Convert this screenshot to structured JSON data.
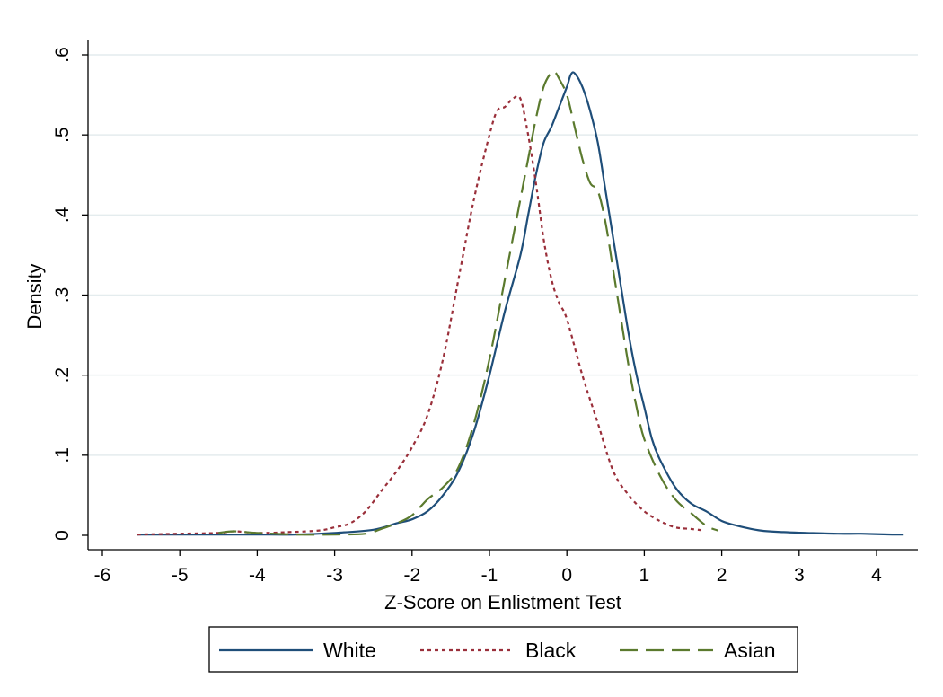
{
  "chart_data": {
    "type": "line",
    "title": "",
    "xlabel": "Z-Score on Enlistment Test",
    "ylabel": "Density",
    "xlim": [
      -6,
      4.5
    ],
    "ylim": [
      0,
      0.6
    ],
    "x_ticks": [
      -6,
      -5,
      -4,
      -3,
      -2,
      -1,
      0,
      1,
      2,
      3,
      4
    ],
    "x_tick_labels": [
      "-6",
      "-5",
      "-4",
      "-3",
      "-2",
      "-1",
      "0",
      "1",
      "2",
      "3",
      "4"
    ],
    "y_ticks": [
      0,
      0.1,
      0.2,
      0.3,
      0.4,
      0.5,
      0.6
    ],
    "y_tick_labels": [
      "0",
      ".1",
      ".2",
      ".3",
      ".4",
      ".5",
      ".6"
    ],
    "grid": "horizontal",
    "legend_position": "bottom",
    "series": [
      {
        "name": "White",
        "color": "#1f4e79",
        "dash": "solid",
        "points": [
          [
            -5.55,
            0.001
          ],
          [
            -5.0,
            0.001
          ],
          [
            -4.5,
            0.001
          ],
          [
            -4.0,
            0.001
          ],
          [
            -3.5,
            0.001
          ],
          [
            -3.0,
            0.003
          ],
          [
            -2.5,
            0.007
          ],
          [
            -2.2,
            0.015
          ],
          [
            -2.0,
            0.02
          ],
          [
            -1.8,
            0.03
          ],
          [
            -1.6,
            0.05
          ],
          [
            -1.4,
            0.08
          ],
          [
            -1.2,
            0.13
          ],
          [
            -1.0,
            0.2
          ],
          [
            -0.8,
            0.28
          ],
          [
            -0.6,
            0.35
          ],
          [
            -0.5,
            0.4
          ],
          [
            -0.4,
            0.45
          ],
          [
            -0.3,
            0.49
          ],
          [
            -0.2,
            0.51
          ],
          [
            -0.1,
            0.535
          ],
          [
            0.0,
            0.56
          ],
          [
            0.05,
            0.575
          ],
          [
            0.1,
            0.577
          ],
          [
            0.2,
            0.56
          ],
          [
            0.3,
            0.53
          ],
          [
            0.4,
            0.49
          ],
          [
            0.5,
            0.43
          ],
          [
            0.6,
            0.37
          ],
          [
            0.7,
            0.31
          ],
          [
            0.8,
            0.25
          ],
          [
            0.9,
            0.2
          ],
          [
            1.0,
            0.16
          ],
          [
            1.1,
            0.12
          ],
          [
            1.2,
            0.095
          ],
          [
            1.4,
            0.06
          ],
          [
            1.6,
            0.04
          ],
          [
            1.8,
            0.03
          ],
          [
            2.0,
            0.018
          ],
          [
            2.2,
            0.012
          ],
          [
            2.5,
            0.006
          ],
          [
            2.8,
            0.004
          ],
          [
            3.1,
            0.003
          ],
          [
            3.5,
            0.002
          ],
          [
            3.8,
            0.002
          ],
          [
            4.2,
            0.001
          ],
          [
            4.35,
            0.001
          ]
        ]
      },
      {
        "name": "Black",
        "color": "#9a2f3a",
        "dash": "dotted",
        "points": [
          [
            -5.55,
            0.001
          ],
          [
            -5.0,
            0.002
          ],
          [
            -4.5,
            0.003
          ],
          [
            -4.3,
            0.005
          ],
          [
            -4.0,
            0.003
          ],
          [
            -3.6,
            0.004
          ],
          [
            -3.2,
            0.006
          ],
          [
            -3.0,
            0.01
          ],
          [
            -2.8,
            0.015
          ],
          [
            -2.6,
            0.03
          ],
          [
            -2.4,
            0.055
          ],
          [
            -2.2,
            0.08
          ],
          [
            -2.0,
            0.11
          ],
          [
            -1.8,
            0.15
          ],
          [
            -1.6,
            0.22
          ],
          [
            -1.4,
            0.32
          ],
          [
            -1.2,
            0.42
          ],
          [
            -1.0,
            0.5
          ],
          [
            -0.9,
            0.53
          ],
          [
            -0.8,
            0.535
          ],
          [
            -0.7,
            0.545
          ],
          [
            -0.6,
            0.545
          ],
          [
            -0.5,
            0.5
          ],
          [
            -0.4,
            0.44
          ],
          [
            -0.3,
            0.37
          ],
          [
            -0.2,
            0.32
          ],
          [
            -0.1,
            0.29
          ],
          [
            0.0,
            0.27
          ],
          [
            0.2,
            0.2
          ],
          [
            0.4,
            0.14
          ],
          [
            0.6,
            0.08
          ],
          [
            0.8,
            0.05
          ],
          [
            1.0,
            0.03
          ],
          [
            1.2,
            0.018
          ],
          [
            1.4,
            0.01
          ],
          [
            1.6,
            0.008
          ],
          [
            1.78,
            0.006
          ]
        ]
      },
      {
        "name": "Asian",
        "color": "#5b7a2e",
        "dash": "dashed",
        "points": [
          [
            -4.5,
            0.003
          ],
          [
            -4.3,
            0.005
          ],
          [
            -4.0,
            0.003
          ],
          [
            -3.5,
            0.001
          ],
          [
            -3.0,
            0.001
          ],
          [
            -2.6,
            0.002
          ],
          [
            -2.4,
            0.008
          ],
          [
            -2.2,
            0.015
          ],
          [
            -2.0,
            0.025
          ],
          [
            -1.8,
            0.045
          ],
          [
            -1.6,
            0.06
          ],
          [
            -1.4,
            0.085
          ],
          [
            -1.2,
            0.14
          ],
          [
            -1.0,
            0.22
          ],
          [
            -0.8,
            0.32
          ],
          [
            -0.6,
            0.42
          ],
          [
            -0.5,
            0.47
          ],
          [
            -0.4,
            0.52
          ],
          [
            -0.3,
            0.56
          ],
          [
            -0.2,
            0.578
          ],
          [
            -0.15,
            0.578
          ],
          [
            -0.1,
            0.57
          ],
          [
            0.0,
            0.55
          ],
          [
            0.1,
            0.51
          ],
          [
            0.2,
            0.47
          ],
          [
            0.3,
            0.44
          ],
          [
            0.4,
            0.43
          ],
          [
            0.5,
            0.39
          ],
          [
            0.6,
            0.33
          ],
          [
            0.7,
            0.27
          ],
          [
            0.8,
            0.21
          ],
          [
            0.9,
            0.16
          ],
          [
            1.0,
            0.12
          ],
          [
            1.2,
            0.075
          ],
          [
            1.4,
            0.045
          ],
          [
            1.6,
            0.028
          ],
          [
            1.8,
            0.012
          ],
          [
            1.95,
            0.006
          ]
        ]
      }
    ]
  }
}
